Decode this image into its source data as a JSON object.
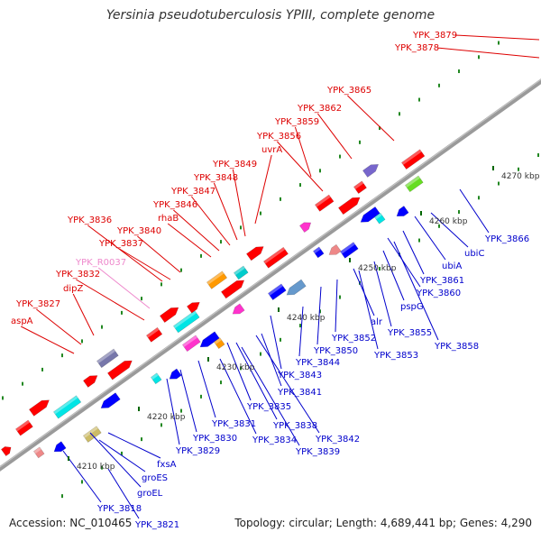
{
  "title": "Yersinia pseudotuberculosis YPIII, complete genome",
  "footer": {
    "accession": "Accession: NC_010465",
    "summary": "Topology: circular; Length: 4,689,441 bp; Genes: 4,290"
  },
  "colors": {
    "forward_label": "#dd0000",
    "reverse_label": "#0000cc",
    "rna_label": "#ee88cc",
    "backbone": "#888888",
    "tick": "#228822"
  },
  "ticks": [
    "4210 kbp",
    "4220 kbp",
    "4230 kbp",
    "4240 kbp",
    "4250 kbp",
    "4260 kbp",
    "4270 kbp"
  ],
  "labels_top": [
    {
      "text": "YPK_3879",
      "type": "forward"
    },
    {
      "text": "YPK_3878",
      "type": "forward"
    },
    {
      "text": "YPK_3865",
      "type": "forward"
    },
    {
      "text": "YPK_3862",
      "type": "forward"
    },
    {
      "text": "YPK_3859",
      "type": "forward"
    },
    {
      "text": "YPK_3856",
      "type": "forward"
    },
    {
      "text": "uvrA",
      "type": "forward"
    },
    {
      "text": "YPK_3849",
      "type": "forward"
    },
    {
      "text": "YPK_3848",
      "type": "forward"
    },
    {
      "text": "YPK_3847",
      "type": "forward"
    },
    {
      "text": "YPK_3846",
      "type": "forward"
    },
    {
      "text": "rhaB",
      "type": "forward"
    },
    {
      "text": "YPK_3836",
      "type": "forward"
    },
    {
      "text": "YPK_3840",
      "type": "forward"
    },
    {
      "text": "YPK_3837",
      "type": "forward"
    },
    {
      "text": "YPK_R0037",
      "type": "rna"
    },
    {
      "text": "YPK_3832",
      "type": "forward"
    },
    {
      "text": "dipZ",
      "type": "forward"
    },
    {
      "text": "YPK_3827",
      "type": "forward"
    },
    {
      "text": "aspA",
      "type": "forward"
    }
  ],
  "labels_bottom": [
    {
      "text": "YPK_3866",
      "type": "reverse"
    },
    {
      "text": "ubiC",
      "type": "reverse"
    },
    {
      "text": "ubiA",
      "type": "reverse"
    },
    {
      "text": "YPK_3861",
      "type": "reverse"
    },
    {
      "text": "YPK_3860",
      "type": "reverse"
    },
    {
      "text": "pspG",
      "type": "reverse"
    },
    {
      "text": "YPK_3855",
      "type": "reverse"
    },
    {
      "text": "YPK_3858",
      "type": "reverse"
    },
    {
      "text": "alr",
      "type": "reverse"
    },
    {
      "text": "YPK_3853",
      "type": "reverse"
    },
    {
      "text": "YPK_3852",
      "type": "reverse"
    },
    {
      "text": "YPK_3850",
      "type": "reverse"
    },
    {
      "text": "YPK_3844",
      "type": "reverse"
    },
    {
      "text": "YPK_3843",
      "type": "reverse"
    },
    {
      "text": "YPK_3841",
      "type": "reverse"
    },
    {
      "text": "YPK_3835",
      "type": "reverse"
    },
    {
      "text": "YPK_3838",
      "type": "reverse"
    },
    {
      "text": "YPK_3842",
      "type": "reverse"
    },
    {
      "text": "YPK_3831",
      "type": "reverse"
    },
    {
      "text": "YPK_3834",
      "type": "reverse"
    },
    {
      "text": "YPK_3839",
      "type": "reverse"
    },
    {
      "text": "YPK_3830",
      "type": "reverse"
    },
    {
      "text": "YPK_3829",
      "type": "reverse"
    },
    {
      "text": "fxsA",
      "type": "reverse"
    },
    {
      "text": "groES",
      "type": "reverse"
    },
    {
      "text": "groEL",
      "type": "reverse"
    },
    {
      "text": "YPK_3818",
      "type": "reverse"
    },
    {
      "text": "YPK_3821",
      "type": "reverse"
    }
  ],
  "features": [
    {
      "type": "fwd",
      "color": "#ff0000"
    },
    {
      "type": "fwd",
      "color": "#ff0000"
    },
    {
      "type": "fwd",
      "color": "#ff0000"
    },
    {
      "type": "fwd",
      "color": "#00e5e5"
    },
    {
      "type": "fwd",
      "color": "#ff0000"
    },
    {
      "type": "fwd",
      "color": "#7777aa"
    },
    {
      "type": "fwd",
      "color": "#ff0000"
    },
    {
      "type": "fwd",
      "color": "#ff0000"
    },
    {
      "type": "fwd",
      "color": "#ff0000"
    },
    {
      "type": "fwd",
      "color": "#00e5e5"
    },
    {
      "type": "fwd",
      "color": "#ff0000"
    },
    {
      "type": "fwd",
      "color": "#ff9900"
    },
    {
      "type": "fwd",
      "color": "#ff0000"
    },
    {
      "type": "fwd",
      "color": "#00cccc"
    },
    {
      "type": "fwd",
      "color": "#ff0000"
    },
    {
      "type": "fwd",
      "color": "#ff0000"
    },
    {
      "type": "fwd",
      "color": "#ff33cc"
    },
    {
      "type": "fwd",
      "color": "#ff0000"
    },
    {
      "type": "fwd",
      "color": "#ff0000"
    },
    {
      "type": "fwd",
      "color": "#ff0000"
    },
    {
      "type": "fwd",
      "color": "#7766cc"
    },
    {
      "type": "fwd",
      "color": "#ff0000"
    },
    {
      "type": "rev",
      "color": "#ee8888"
    },
    {
      "type": "rev",
      "color": "#0000ff"
    },
    {
      "type": "rev",
      "color": "#ccbb66"
    },
    {
      "type": "rev",
      "color": "#0000ff"
    },
    {
      "type": "rev",
      "color": "#00e5e5"
    },
    {
      "type": "rev",
      "color": "#0000ff"
    },
    {
      "type": "rev",
      "color": "#ff33cc"
    },
    {
      "type": "rev",
      "color": "#0000ff"
    },
    {
      "type": "rev",
      "color": "#ff9900"
    },
    {
      "type": "rev",
      "color": "#ff33cc"
    },
    {
      "type": "rev",
      "color": "#0000ff"
    },
    {
      "type": "rev",
      "color": "#6699cc"
    },
    {
      "type": "rev",
      "color": "#0000ff"
    },
    {
      "type": "rev",
      "color": "#ee8888"
    },
    {
      "type": "rev",
      "color": "#0000ff"
    },
    {
      "type": "rev",
      "color": "#0000ff"
    },
    {
      "type": "rev",
      "color": "#00e5e5"
    },
    {
      "type": "rev",
      "color": "#0000ff"
    },
    {
      "type": "rev",
      "color": "#66dd22"
    }
  ]
}
